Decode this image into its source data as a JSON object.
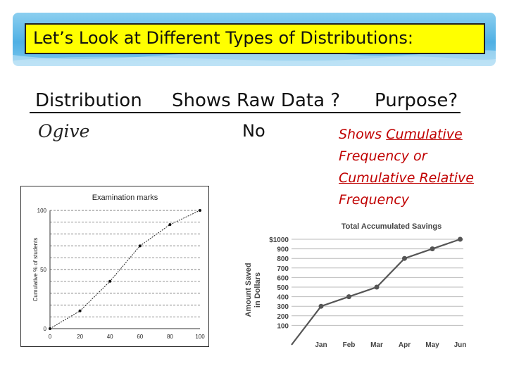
{
  "title": "Let’s Look at Different Types of Distributions:",
  "table": {
    "headers": [
      "Distribution",
      "Shows Raw Data ?",
      "Purpose?"
    ],
    "row": {
      "distribution": "Ogive",
      "raw_data": "No",
      "purpose_lines": [
        "Shows Cumulative",
        "Frequency or",
        "Cumulative Relative",
        "Frequency"
      ]
    }
  },
  "colors": {
    "banner": "#4fb0e4",
    "title_box": "#ffff00",
    "purpose_text": "#c00000"
  },
  "chart_data": [
    {
      "type": "line",
      "title": "Examination marks",
      "ylabel": "Cumulative % of students",
      "xlabel": "",
      "x": [
        0,
        20,
        40,
        60,
        80,
        100
      ],
      "y": [
        0,
        15,
        40,
        70,
        88,
        100
      ],
      "xticks": [
        "0",
        "20",
        "40",
        "60",
        "80",
        "100"
      ],
      "yticks": [
        "0",
        "50",
        "100"
      ],
      "xlim": [
        0,
        100
      ],
      "ylim": [
        0,
        100
      ],
      "grid": "horizontal dashed"
    },
    {
      "type": "line",
      "title": "Total Accumulated Savings",
      "ylabel": "Amount Saved in Dollars",
      "categories": [
        "Jan",
        "Feb",
        "Mar",
        "Apr",
        "May",
        "Jun"
      ],
      "values": [
        300,
        400,
        500,
        800,
        900,
        1000
      ],
      "yticks": [
        "100",
        "200",
        "300",
        "400",
        "500",
        "600",
        "700",
        "800",
        "900",
        "$1000"
      ],
      "ylim": [
        0,
        1000
      ],
      "grid": "horizontal"
    }
  ]
}
